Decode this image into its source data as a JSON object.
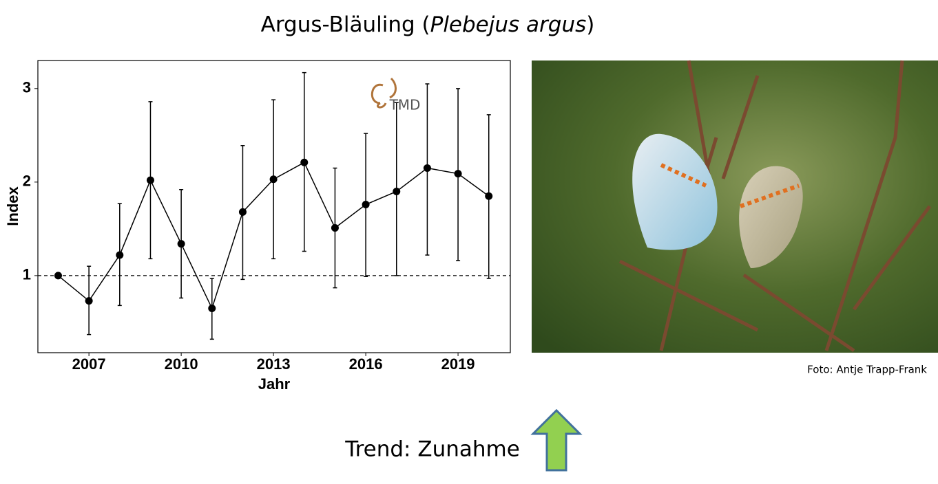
{
  "title_parts": [
    "Argus-Bläuling (",
    "Plebejus argus",
    ")"
  ],
  "chart_data": {
    "type": "line",
    "x_label": "Jahr",
    "y_label": "Index",
    "logo": "TMD",
    "x": [
      2006,
      2007,
      2008,
      2009,
      2010,
      2011,
      2012,
      2013,
      2014,
      2015,
      2016,
      2017,
      2018,
      2019,
      2020
    ],
    "series": [
      {
        "color": "#000000",
        "values": [
          1.0,
          0.73,
          1.22,
          2.02,
          1.34,
          0.65,
          1.68,
          2.03,
          2.21,
          1.51,
          1.76,
          1.9,
          2.15,
          2.09,
          1.85
        ],
        "lower": [
          null,
          0.37,
          0.68,
          1.18,
          0.76,
          0.32,
          0.96,
          1.18,
          1.26,
          0.87,
          0.99,
          1.0,
          1.22,
          1.16,
          0.97
        ],
        "upper": [
          null,
          1.1,
          1.77,
          2.86,
          1.92,
          0.97,
          2.39,
          2.88,
          3.17,
          2.15,
          2.52,
          2.85,
          3.05,
          3.0,
          2.72
        ]
      }
    ],
    "reference_line": 1,
    "xlim": [
      2005.34,
      2020.7
    ],
    "xticks": [
      2007,
      2010,
      2013,
      2016,
      2019
    ],
    "ylim": [
      0.176,
      3.3
    ],
    "yticks": [
      1,
      2,
      3
    ],
    "grid": false
  },
  "photo_credit": "Foto: Antje Trapp-Frank",
  "trend": "Trend: Zunahme"
}
